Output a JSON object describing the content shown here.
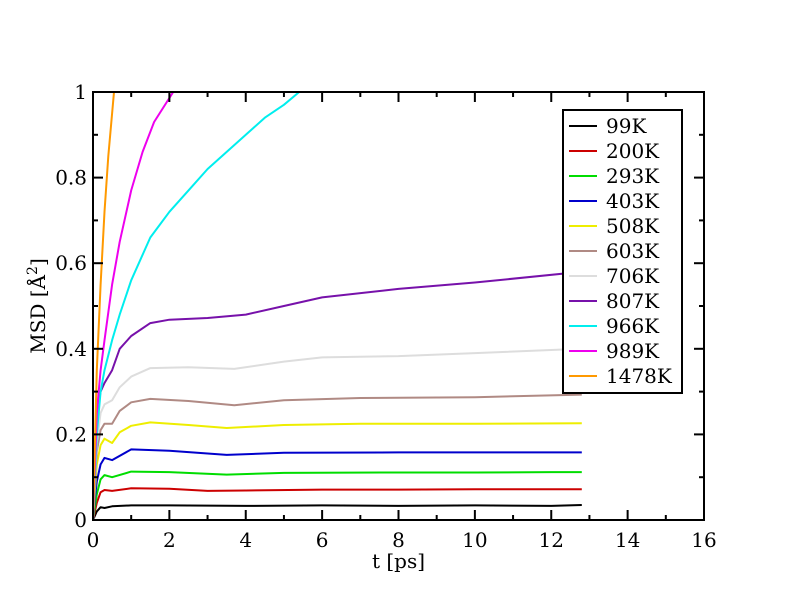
{
  "chart_data": {
    "type": "line",
    "xlabel": "t [ps]",
    "ylabel_prefix": "MSD [",
    "ylabel_unit": "Å",
    "ylabel_exp": "2",
    "ylabel_suffix": "]",
    "xlim": [
      0,
      16
    ],
    "ylim": [
      0,
      1
    ],
    "xticks": [
      0,
      2,
      4,
      6,
      8,
      10,
      12,
      14,
      16
    ],
    "yticks": [
      0,
      0.2,
      0.4,
      0.6,
      0.8,
      1
    ],
    "xtick_labels": [
      "0",
      "2",
      "4",
      "6",
      "8",
      "10",
      "12",
      "14",
      "16"
    ],
    "ytick_labels": [
      "0",
      "0.2",
      "0.4",
      "0.6",
      "0.8",
      "1"
    ],
    "grid": false,
    "legend_position": "top-right",
    "series": [
      {
        "name": "99K",
        "color": "#000000",
        "x": [
          0,
          0.05,
          0.1,
          0.2,
          0.3,
          0.5,
          1,
          2,
          4,
          6,
          8,
          10,
          12,
          12.8
        ],
        "y": [
          0,
          0.01,
          0.02,
          0.03,
          0.028,
          0.032,
          0.034,
          0.034,
          0.033,
          0.034,
          0.033,
          0.034,
          0.033,
          0.035
        ]
      },
      {
        "name": "200K",
        "color": "#cc0000",
        "x": [
          0,
          0.05,
          0.1,
          0.2,
          0.3,
          0.5,
          1,
          2,
          3,
          4,
          6,
          8,
          10,
          12,
          12.8
        ],
        "y": [
          0,
          0.02,
          0.04,
          0.065,
          0.07,
          0.068,
          0.074,
          0.073,
          0.068,
          0.069,
          0.071,
          0.071,
          0.072,
          0.072,
          0.072
        ]
      },
      {
        "name": "293K",
        "color": "#00dd00",
        "x": [
          0,
          0.05,
          0.1,
          0.2,
          0.3,
          0.5,
          1,
          2,
          3.5,
          5,
          8,
          10,
          12,
          12.8
        ],
        "y": [
          0,
          0.03,
          0.06,
          0.095,
          0.105,
          0.1,
          0.113,
          0.112,
          0.106,
          0.11,
          0.111,
          0.111,
          0.112,
          0.112
        ]
      },
      {
        "name": "403K",
        "color": "#0000cc",
        "x": [
          0,
          0.05,
          0.1,
          0.2,
          0.3,
          0.5,
          1,
          2,
          3.5,
          5,
          8,
          10,
          12,
          12.8
        ],
        "y": [
          0,
          0.05,
          0.09,
          0.13,
          0.145,
          0.14,
          0.165,
          0.162,
          0.152,
          0.157,
          0.158,
          0.158,
          0.158,
          0.158
        ]
      },
      {
        "name": "508K",
        "color": "#eeee00",
        "x": [
          0,
          0.05,
          0.1,
          0.2,
          0.3,
          0.5,
          0.7,
          1,
          1.5,
          2.5,
          3.5,
          5,
          7,
          10,
          12.8
        ],
        "y": [
          0,
          0.07,
          0.13,
          0.175,
          0.19,
          0.18,
          0.205,
          0.22,
          0.228,
          0.222,
          0.215,
          0.222,
          0.225,
          0.225,
          0.226
        ]
      },
      {
        "name": "603K",
        "color": "#b08a84",
        "x": [
          0,
          0.05,
          0.1,
          0.2,
          0.3,
          0.5,
          0.7,
          1,
          1.5,
          2.5,
          3.7,
          5,
          7,
          10,
          12.8
        ],
        "y": [
          0,
          0.09,
          0.16,
          0.21,
          0.225,
          0.225,
          0.255,
          0.275,
          0.283,
          0.278,
          0.268,
          0.28,
          0.285,
          0.287,
          0.293
        ]
      },
      {
        "name": "706K",
        "color": "#dddddd",
        "x": [
          0,
          0.05,
          0.1,
          0.2,
          0.3,
          0.5,
          0.7,
          1,
          1.5,
          2.5,
          3.7,
          5,
          6,
          8,
          10,
          12.8
        ],
        "y": [
          0,
          0.1,
          0.18,
          0.25,
          0.27,
          0.28,
          0.31,
          0.335,
          0.355,
          0.357,
          0.353,
          0.37,
          0.38,
          0.383,
          0.39,
          0.4
        ]
      },
      {
        "name": "807K",
        "color": "#7711aa",
        "x": [
          0,
          0.05,
          0.1,
          0.2,
          0.3,
          0.5,
          0.7,
          1,
          1.5,
          2,
          3,
          4,
          5,
          6,
          8,
          10,
          12.8
        ],
        "y": [
          0,
          0.15,
          0.25,
          0.3,
          0.32,
          0.35,
          0.4,
          0.43,
          0.46,
          0.468,
          0.472,
          0.48,
          0.5,
          0.52,
          0.54,
          0.555,
          0.58
        ]
      },
      {
        "name": "966K",
        "color": "#00eeee",
        "x": [
          0,
          0.1,
          0.2,
          0.3,
          0.5,
          0.7,
          1,
          1.5,
          2,
          2.5,
          3,
          3.5,
          4,
          4.5,
          5,
          5.4
        ],
        "y": [
          0,
          0.2,
          0.3,
          0.35,
          0.42,
          0.48,
          0.56,
          0.66,
          0.72,
          0.77,
          0.82,
          0.86,
          0.9,
          0.94,
          0.97,
          1.0
        ]
      },
      {
        "name": "989K",
        "color": "#ee00ee",
        "x": [
          0,
          0.1,
          0.2,
          0.3,
          0.5,
          0.7,
          1,
          1.3,
          1.6,
          2.1
        ],
        "y": [
          0,
          0.25,
          0.35,
          0.42,
          0.55,
          0.65,
          0.77,
          0.86,
          0.93,
          1.0
        ]
      },
      {
        "name": "1478K",
        "color": "#ff9900",
        "x": [
          0,
          0.1,
          0.2,
          0.3,
          0.4,
          0.55
        ],
        "y": [
          0,
          0.35,
          0.55,
          0.72,
          0.85,
          1.0
        ]
      }
    ]
  }
}
